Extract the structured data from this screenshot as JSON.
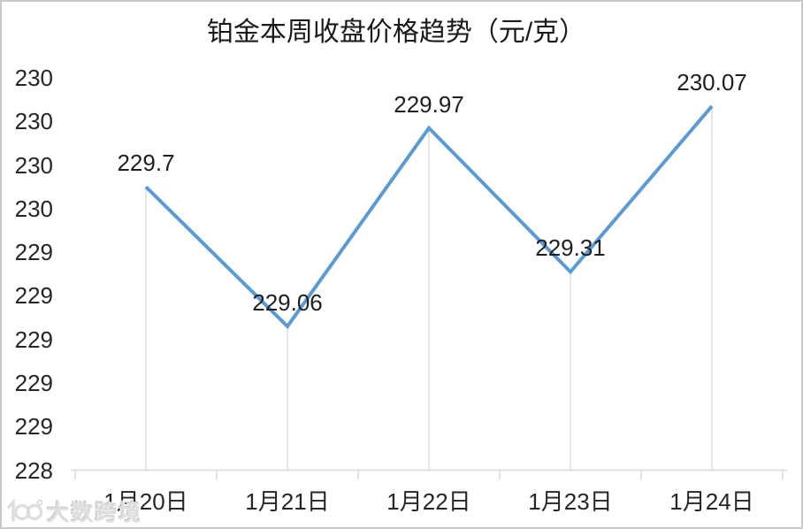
{
  "chart_data": {
    "type": "line",
    "title": "铂金本周收盘价格趋势（元/克）",
    "categories": [
      "1月20日",
      "1月21日",
      "1月22日",
      "1月23日",
      "1月24日"
    ],
    "values": [
      229.7,
      229.06,
      229.97,
      229.31,
      230.07
    ],
    "data_labels": [
      "229.7",
      "229.06",
      "229.97",
      "229.31",
      "230.07"
    ],
    "xlabel": "",
    "ylabel": "",
    "ylim": [
      228.4,
      230.2
    ],
    "y_step": 0.2,
    "y_tick_labels_top_to_bottom": [
      "230",
      "230",
      "230",
      "230",
      "229",
      "229",
      "229",
      "229",
      "229",
      "228"
    ],
    "legend": "none",
    "grid": "vertical-drop-lines-only",
    "line_color": "#5B9BD5",
    "axis_color": "#D9D9D9",
    "text_color": "#262626"
  },
  "watermark": {
    "logo": "10100-infinity-logo",
    "text": "大数跨境"
  }
}
